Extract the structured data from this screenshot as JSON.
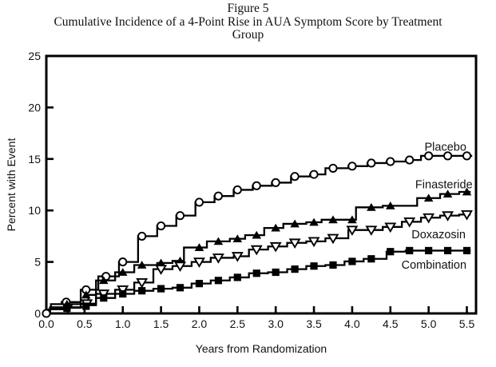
{
  "figure": {
    "heading": "Figure 5",
    "title_line1": "Cumulative Incidence of a 4-Point Rise in AUA Symptom Score by Treatment",
    "title_line2": "Group"
  },
  "chart_data": {
    "type": "line",
    "subtype": "cumulative-incidence-step",
    "title": "Figure 5 — Cumulative Incidence of a 4-Point Rise in AUA Symptom Score by Treatment Group",
    "xlabel": "Years from Randomization",
    "ylabel": "Percent with Event",
    "xlim": [
      0,
      5.62
    ],
    "ylim": [
      0,
      25
    ],
    "x_tick_labels": [
      "0.0",
      "0.5",
      "1.0",
      "1.5",
      "2.0",
      "2.5",
      "3.0",
      "3.5",
      "4.0",
      "4.5",
      "5.0",
      "5.5"
    ],
    "y_tick_labels": [
      "0",
      "5",
      "10",
      "15",
      "20",
      "25"
    ],
    "grid": false,
    "legend": "inline-labels-right",
    "line_color": "#000000",
    "background": "#ffffff",
    "series": [
      {
        "name": "Placebo",
        "marker": "open-circle",
        "label_pos": [
          5.22,
          16.2
        ],
        "end_x": 5.57,
        "steps": [
          [
            0.03,
            0.4
          ],
          [
            0.06,
            0.9
          ],
          [
            0.2,
            1.1
          ],
          [
            0.45,
            2.3
          ],
          [
            0.68,
            3.6
          ],
          [
            0.95,
            5.0
          ],
          [
            1.2,
            7.5
          ],
          [
            1.45,
            8.5
          ],
          [
            1.7,
            9.5
          ],
          [
            1.95,
            10.8
          ],
          [
            2.2,
            11.4
          ],
          [
            2.45,
            12.0
          ],
          [
            2.7,
            12.4
          ],
          [
            2.95,
            12.7
          ],
          [
            3.2,
            13.3
          ],
          [
            3.45,
            13.5
          ],
          [
            3.65,
            14.1
          ],
          [
            3.95,
            14.3
          ],
          [
            4.2,
            14.6
          ],
          [
            4.45,
            14.75
          ],
          [
            4.7,
            14.9
          ],
          [
            4.9,
            15.3
          ]
        ],
        "markers": [
          [
            0,
            0
          ],
          [
            0.26,
            1.1
          ],
          [
            0.52,
            2.3
          ],
          [
            0.78,
            3.6
          ],
          [
            1.0,
            5.0
          ],
          [
            1.25,
            7.5
          ],
          [
            1.5,
            8.5
          ],
          [
            1.75,
            9.5
          ],
          [
            2.0,
            10.8
          ],
          [
            2.25,
            11.4
          ],
          [
            2.5,
            12.0
          ],
          [
            2.75,
            12.4
          ],
          [
            3.0,
            12.7
          ],
          [
            3.25,
            13.3
          ],
          [
            3.5,
            13.5
          ],
          [
            3.75,
            14.1
          ],
          [
            4.0,
            14.3
          ],
          [
            4.25,
            14.6
          ],
          [
            4.5,
            14.75
          ],
          [
            4.75,
            14.9
          ],
          [
            5.0,
            15.3
          ],
          [
            5.25,
            15.3
          ],
          [
            5.5,
            15.3
          ]
        ]
      },
      {
        "name": "Finasteride",
        "marker": "filled-triangle-up",
        "label_pos": [
          5.2,
          12.55
        ],
        "end_x": 5.55,
        "steps": [
          [
            0.05,
            0.6
          ],
          [
            0.3,
            0.9
          ],
          [
            0.55,
            1.8
          ],
          [
            0.65,
            3.2
          ],
          [
            0.9,
            4.0
          ],
          [
            1.15,
            4.7
          ],
          [
            1.45,
            4.9
          ],
          [
            1.65,
            5.1
          ],
          [
            1.8,
            6.4
          ],
          [
            2.1,
            7.0
          ],
          [
            2.4,
            7.25
          ],
          [
            2.6,
            7.6
          ],
          [
            2.85,
            8.3
          ],
          [
            3.1,
            8.7
          ],
          [
            3.4,
            8.85
          ],
          [
            3.6,
            9.1
          ],
          [
            4.05,
            10.3
          ],
          [
            4.4,
            10.45
          ],
          [
            4.85,
            11.2
          ],
          [
            5.15,
            11.6
          ],
          [
            5.4,
            11.8
          ]
        ],
        "markers": [
          [
            0.27,
            0.9
          ],
          [
            0.52,
            1.8
          ],
          [
            0.75,
            3.2
          ],
          [
            1.0,
            4.0
          ],
          [
            1.25,
            4.7
          ],
          [
            1.5,
            4.9
          ],
          [
            1.75,
            5.1
          ],
          [
            2.0,
            6.4
          ],
          [
            2.25,
            7.0
          ],
          [
            2.5,
            7.25
          ],
          [
            2.75,
            7.6
          ],
          [
            3.0,
            8.3
          ],
          [
            3.25,
            8.7
          ],
          [
            3.5,
            8.85
          ],
          [
            3.75,
            9.1
          ],
          [
            4.0,
            9.1
          ],
          [
            4.25,
            10.3
          ],
          [
            4.5,
            10.45
          ],
          [
            5.0,
            11.2
          ],
          [
            5.25,
            11.6
          ],
          [
            5.5,
            11.8
          ]
        ]
      },
      {
        "name": "Doxazosin",
        "marker": "open-triangle-down",
        "label_pos": [
          5.13,
          7.67
        ],
        "end_x": 5.55,
        "steps": [
          [
            0.05,
            0.55
          ],
          [
            0.45,
            0.95
          ],
          [
            0.65,
            1.9
          ],
          [
            0.9,
            2.3
          ],
          [
            1.15,
            3.0
          ],
          [
            1.4,
            4.3
          ],
          [
            1.65,
            4.6
          ],
          [
            1.9,
            5.0
          ],
          [
            2.15,
            5.4
          ],
          [
            2.45,
            5.55
          ],
          [
            2.65,
            6.2
          ],
          [
            2.9,
            6.5
          ],
          [
            3.15,
            6.85
          ],
          [
            3.4,
            7.0
          ],
          [
            3.65,
            7.3
          ],
          [
            3.95,
            8.1
          ],
          [
            4.4,
            8.4
          ],
          [
            4.65,
            8.9
          ],
          [
            4.9,
            9.3
          ],
          [
            5.15,
            9.5
          ],
          [
            5.4,
            9.6
          ]
        ],
        "markers": [
          [
            0.28,
            0.55
          ],
          [
            0.53,
            0.95
          ],
          [
            0.75,
            1.9
          ],
          [
            1.0,
            2.3
          ],
          [
            1.25,
            3.0
          ],
          [
            1.5,
            4.3
          ],
          [
            1.75,
            4.6
          ],
          [
            2.0,
            5.0
          ],
          [
            2.25,
            5.4
          ],
          [
            2.5,
            5.55
          ],
          [
            2.75,
            6.2
          ],
          [
            3.0,
            6.5
          ],
          [
            3.25,
            6.85
          ],
          [
            3.5,
            7.0
          ],
          [
            3.75,
            7.3
          ],
          [
            4.0,
            8.1
          ],
          [
            4.25,
            8.1
          ],
          [
            4.5,
            8.4
          ],
          [
            4.75,
            8.9
          ],
          [
            5.0,
            9.3
          ],
          [
            5.25,
            9.5
          ],
          [
            5.5,
            9.6
          ]
        ]
      },
      {
        "name": "Combination",
        "marker": "filled-square",
        "label_pos": [
          5.07,
          4.73
        ],
        "end_x": 5.55,
        "steps": [
          [
            0.05,
            0.4
          ],
          [
            0.3,
            0.6
          ],
          [
            0.55,
            0.8
          ],
          [
            0.65,
            1.5
          ],
          [
            0.9,
            1.9
          ],
          [
            1.15,
            2.2
          ],
          [
            1.4,
            2.4
          ],
          [
            1.65,
            2.5
          ],
          [
            1.9,
            2.9
          ],
          [
            2.15,
            3.2
          ],
          [
            2.4,
            3.5
          ],
          [
            2.65,
            3.9
          ],
          [
            2.9,
            4.0
          ],
          [
            3.15,
            4.3
          ],
          [
            3.4,
            4.6
          ],
          [
            3.65,
            4.7
          ],
          [
            3.9,
            5.05
          ],
          [
            4.15,
            5.3
          ],
          [
            4.45,
            6.0
          ],
          [
            4.7,
            6.1
          ]
        ],
        "markers": [
          [
            0.27,
            0.5
          ],
          [
            0.52,
            0.7
          ],
          [
            0.75,
            1.5
          ],
          [
            1.0,
            1.9
          ],
          [
            1.25,
            2.2
          ],
          [
            1.5,
            2.4
          ],
          [
            1.75,
            2.5
          ],
          [
            2.0,
            2.9
          ],
          [
            2.25,
            3.2
          ],
          [
            2.5,
            3.5
          ],
          [
            2.75,
            3.9
          ],
          [
            3.0,
            4.0
          ],
          [
            3.25,
            4.3
          ],
          [
            3.5,
            4.6
          ],
          [
            3.75,
            4.7
          ],
          [
            4.0,
            5.05
          ],
          [
            4.25,
            5.3
          ],
          [
            4.5,
            6.0
          ],
          [
            4.75,
            6.1
          ],
          [
            5.0,
            6.1
          ],
          [
            5.25,
            6.1
          ],
          [
            5.5,
            6.1
          ]
        ]
      }
    ]
  }
}
